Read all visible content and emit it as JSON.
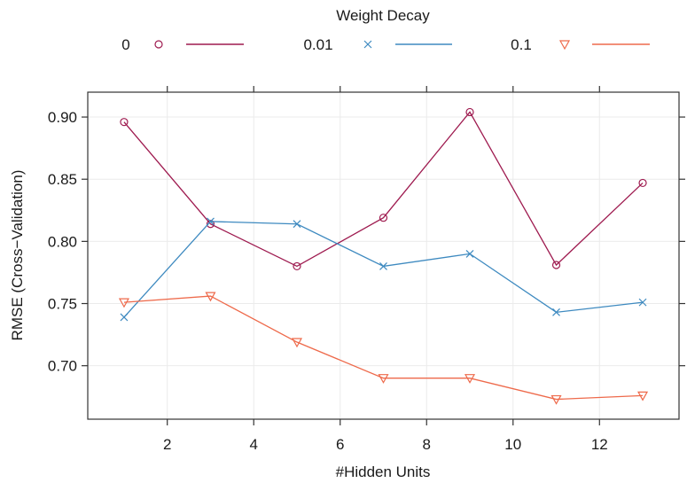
{
  "chart_data": {
    "type": "line",
    "title": "",
    "xlabel": "#Hidden Units",
    "ylabel": "RMSE (Cross−Validation)",
    "xlim": [
      0.16,
      13.84
    ],
    "ylim": [
      0.657,
      0.92
    ],
    "xticks": [
      2,
      4,
      6,
      8,
      10,
      12
    ],
    "xtick_labels": [
      "2",
      "4",
      "6",
      "8",
      "10",
      "12"
    ],
    "yticks": [
      0.7,
      0.75,
      0.8,
      0.85,
      0.9
    ],
    "ytick_labels": [
      "0.70",
      "0.75",
      "0.80",
      "0.85",
      "0.90"
    ],
    "grid": true,
    "legend": {
      "title": "Weight Decay",
      "placement": "top"
    },
    "x": [
      1,
      3,
      5,
      7,
      9,
      11,
      13
    ],
    "series": [
      {
        "name": "0",
        "marker": "circle",
        "color": "#9E1A4F",
        "values": [
          0.896,
          0.814,
          0.78,
          0.819,
          0.904,
          0.781,
          0.847
        ]
      },
      {
        "name": "0.01",
        "marker": "cross",
        "color": "#3E8AC0",
        "values": [
          0.739,
          0.816,
          0.814,
          0.78,
          0.79,
          0.743,
          0.751
        ]
      },
      {
        "name": "0.1",
        "marker": "triangle-down",
        "color": "#EE6A4B",
        "values": [
          0.751,
          0.756,
          0.719,
          0.69,
          0.69,
          0.673,
          0.676
        ]
      }
    ]
  }
}
